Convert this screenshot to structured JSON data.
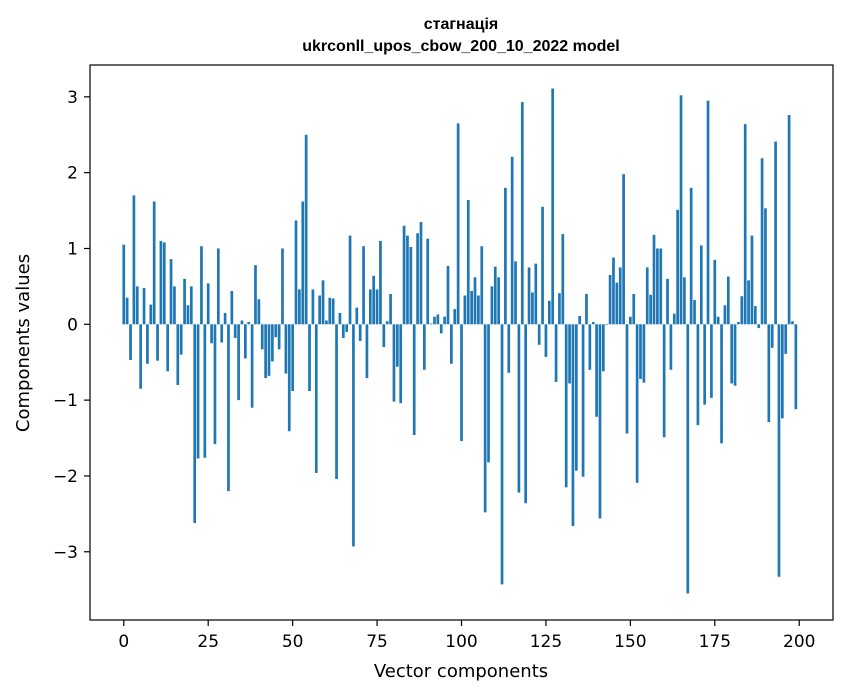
{
  "chart_data": {
    "type": "bar",
    "title": "стагнація",
    "subtitle": "ukrconll_upos_cbow_200_10_2022 model",
    "xlabel": "Vector components",
    "ylabel": "Components values",
    "xlim": [
      -10,
      210
    ],
    "ylim": [
      -3.9,
      3.42
    ],
    "xticks": [
      0,
      25,
      50,
      75,
      100,
      125,
      150,
      175,
      200
    ],
    "yticks": [
      -3,
      -2,
      -1,
      0,
      1,
      2,
      3
    ],
    "ytick_labels": [
      "−3",
      "−2",
      "−1",
      "0",
      "1",
      "2",
      "3"
    ],
    "bar_color": "#1f77b4",
    "grid": false,
    "x": [
      0,
      1,
      2,
      3,
      4,
      5,
      6,
      7,
      8,
      9,
      10,
      11,
      12,
      13,
      14,
      15,
      16,
      17,
      18,
      19,
      20,
      21,
      22,
      23,
      24,
      25,
      26,
      27,
      28,
      29,
      30,
      31,
      32,
      33,
      34,
      35,
      36,
      37,
      38,
      39,
      40,
      41,
      42,
      43,
      44,
      45,
      46,
      47,
      48,
      49,
      50,
      51,
      52,
      53,
      54,
      55,
      56,
      57,
      58,
      59,
      60,
      61,
      62,
      63,
      64,
      65,
      66,
      67,
      68,
      69,
      70,
      71,
      72,
      73,
      74,
      75,
      76,
      77,
      78,
      79,
      80,
      81,
      82,
      83,
      84,
      85,
      86,
      87,
      88,
      89,
      90,
      91,
      92,
      93,
      94,
      95,
      96,
      97,
      98,
      99,
      100,
      101,
      102,
      103,
      104,
      105,
      106,
      107,
      108,
      109,
      110,
      111,
      112,
      113,
      114,
      115,
      116,
      117,
      118,
      119,
      120,
      121,
      122,
      123,
      124,
      125,
      126,
      127,
      128,
      129,
      130,
      131,
      132,
      133,
      134,
      135,
      136,
      137,
      138,
      139,
      140,
      141,
      142,
      143,
      144,
      145,
      146,
      147,
      148,
      149,
      150,
      151,
      152,
      153,
      154,
      155,
      156,
      157,
      158,
      159,
      160,
      161,
      162,
      163,
      164,
      165,
      166,
      167,
      168,
      169,
      170,
      171,
      172,
      173,
      174,
      175,
      176,
      177,
      178,
      179,
      180,
      181,
      182,
      183,
      184,
      185,
      186,
      187,
      188,
      189,
      190,
      191,
      192,
      193,
      194,
      195,
      196,
      197,
      198,
      199
    ],
    "values": [
      1.05,
      0.35,
      -0.47,
      1.7,
      0.5,
      -0.85,
      0.48,
      -0.52,
      0.26,
      1.62,
      -0.48,
      1.1,
      1.08,
      -0.62,
      0.86,
      0.5,
      -0.8,
      -0.4,
      0.6,
      0.25,
      0.5,
      -2.62,
      -1.77,
      1.03,
      -1.76,
      0.54,
      -0.25,
      -1.58,
      1.0,
      -0.24,
      0.15,
      -2.2,
      0.44,
      -0.18,
      -1.0,
      0.05,
      -0.45,
      0.03,
      -1.1,
      0.78,
      0.33,
      -0.33,
      -0.71,
      -0.68,
      -0.49,
      -0.17,
      -0.33,
      1.0,
      -0.65,
      -1.41,
      -0.88,
      1.37,
      0.46,
      1.62,
      2.5,
      -0.88,
      0.46,
      -1.96,
      0.38,
      0.58,
      0.05,
      0.35,
      0.34,
      -2.04,
      0.15,
      -0.18,
      -0.1,
      1.17,
      -2.93,
      0.22,
      -0.22,
      1.03,
      -0.71,
      0.46,
      0.64,
      0.46,
      1.1,
      -0.3,
      0.04,
      0.4,
      -1.02,
      -0.56,
      -1.04,
      1.3,
      1.17,
      1.02,
      -1.46,
      1.2,
      1.35,
      -0.6,
      1.13,
      0.01,
      0.1,
      0.13,
      -0.12,
      0.1,
      0.77,
      -0.52,
      0.2,
      2.65,
      -1.54,
      0.38,
      1.64,
      0.44,
      0.62,
      0.38,
      1.03,
      -2.48,
      -1.82,
      0.5,
      0.76,
      0.62,
      -3.43,
      1.8,
      -0.64,
      2.21,
      0.83,
      -2.22,
      2.93,
      -2.36,
      0.75,
      0.42,
      0.8,
      -0.27,
      1.55,
      -0.43,
      0.31,
      3.11,
      -0.76,
      0.41,
      1.19,
      -2.15,
      -0.78,
      -2.66,
      -1.93,
      0.11,
      -2.01,
      0.4,
      -0.6,
      0.03,
      -1.22,
      -2.56,
      -0.62,
      0.0,
      0.65,
      0.88,
      0.55,
      0.75,
      1.98,
      -1.44,
      0.1,
      0.4,
      -2.09,
      -0.72,
      -0.77,
      0.75,
      0.39,
      1.18,
      1.0,
      1.0,
      -1.49,
      0.6,
      -0.6,
      0.14,
      1.51,
      3.02,
      0.62,
      -3.55,
      1.8,
      0.32,
      -1.33,
      1.04,
      -1.06,
      2.95,
      -0.97,
      0.85,
      0.1,
      -1.57,
      0.25,
      0.63,
      -0.78,
      -0.81,
      0.03,
      0.37,
      2.64,
      0.58,
      1.17,
      0.24,
      -0.05,
      2.19,
      1.53,
      -1.29,
      -0.31,
      2.41,
      -3.33,
      -1.24,
      -0.39,
      2.76,
      0.04,
      -1.12
    ]
  }
}
